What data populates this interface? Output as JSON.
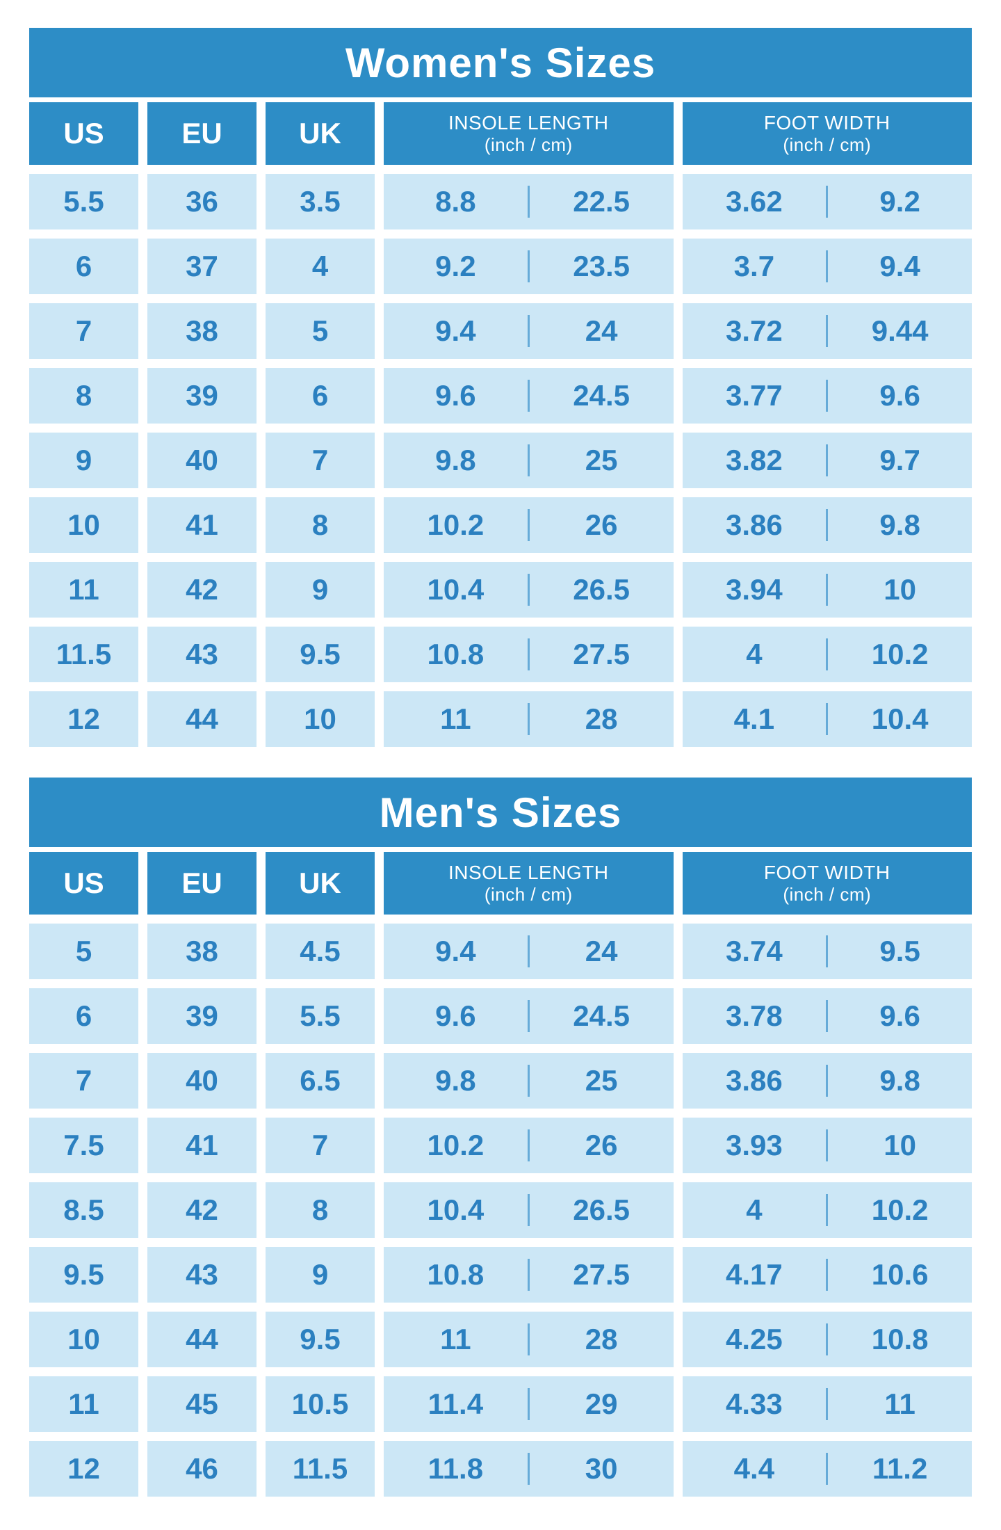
{
  "colors": {
    "header_blue": "#2d8dc6",
    "cell_blue": "#cce7f6",
    "text_blue": "#2b80c0",
    "divider_blue": "#66abd8",
    "background": "#ffffff"
  },
  "chart_data": [
    {
      "type": "table",
      "title": "Women's Sizes",
      "header": {
        "us": "US",
        "eu": "EU",
        "uk": "UK",
        "insole_title": "INSOLE LENGTH",
        "insole_unit": "(inch / cm)",
        "width_title": "FOOT WIDTH",
        "width_unit": "(inch / cm)"
      },
      "columns": [
        "US",
        "EU",
        "UK",
        "INSOLE LENGTH inch",
        "INSOLE LENGTH cm",
        "FOOT WIDTH inch",
        "FOOT WIDTH cm"
      ],
      "rows": [
        [
          "5.5",
          "36",
          "3.5",
          "8.8",
          "22.5",
          "3.62",
          "9.2"
        ],
        [
          "6",
          "37",
          "4",
          "9.2",
          "23.5",
          "3.7",
          "9.4"
        ],
        [
          "7",
          "38",
          "5",
          "9.4",
          "24",
          "3.72",
          "9.44"
        ],
        [
          "8",
          "39",
          "6",
          "9.6",
          "24.5",
          "3.77",
          "9.6"
        ],
        [
          "9",
          "40",
          "7",
          "9.8",
          "25",
          "3.82",
          "9.7"
        ],
        [
          "10",
          "41",
          "8",
          "10.2",
          "26",
          "3.86",
          "9.8"
        ],
        [
          "11",
          "42",
          "9",
          "10.4",
          "26.5",
          "3.94",
          "10"
        ],
        [
          "11.5",
          "43",
          "9.5",
          "10.8",
          "27.5",
          "4",
          "10.2"
        ],
        [
          "12",
          "44",
          "10",
          "11",
          "28",
          "4.1",
          "10.4"
        ]
      ]
    },
    {
      "type": "table",
      "title": "Men's Sizes",
      "header": {
        "us": "US",
        "eu": "EU",
        "uk": "UK",
        "insole_title": "INSOLE LENGTH",
        "insole_unit": "(inch / cm)",
        "width_title": "FOOT WIDTH",
        "width_unit": "(inch / cm)"
      },
      "columns": [
        "US",
        "EU",
        "UK",
        "INSOLE LENGTH inch",
        "INSOLE LENGTH cm",
        "FOOT WIDTH inch",
        "FOOT WIDTH cm"
      ],
      "rows": [
        [
          "5",
          "38",
          "4.5",
          "9.4",
          "24",
          "3.74",
          "9.5"
        ],
        [
          "6",
          "39",
          "5.5",
          "9.6",
          "24.5",
          "3.78",
          "9.6"
        ],
        [
          "7",
          "40",
          "6.5",
          "9.8",
          "25",
          "3.86",
          "9.8"
        ],
        [
          "7.5",
          "41",
          "7",
          "10.2",
          "26",
          "3.93",
          "10"
        ],
        [
          "8.5",
          "42",
          "8",
          "10.4",
          "26.5",
          "4",
          "10.2"
        ],
        [
          "9.5",
          "43",
          "9",
          "10.8",
          "27.5",
          "4.17",
          "10.6"
        ],
        [
          "10",
          "44",
          "9.5",
          "11",
          "28",
          "4.25",
          "10.8"
        ],
        [
          "11",
          "45",
          "10.5",
          "11.4",
          "29",
          "4.33",
          "11"
        ],
        [
          "12",
          "46",
          "11.5",
          "11.8",
          "30",
          "4.4",
          "11.2"
        ]
      ]
    }
  ]
}
